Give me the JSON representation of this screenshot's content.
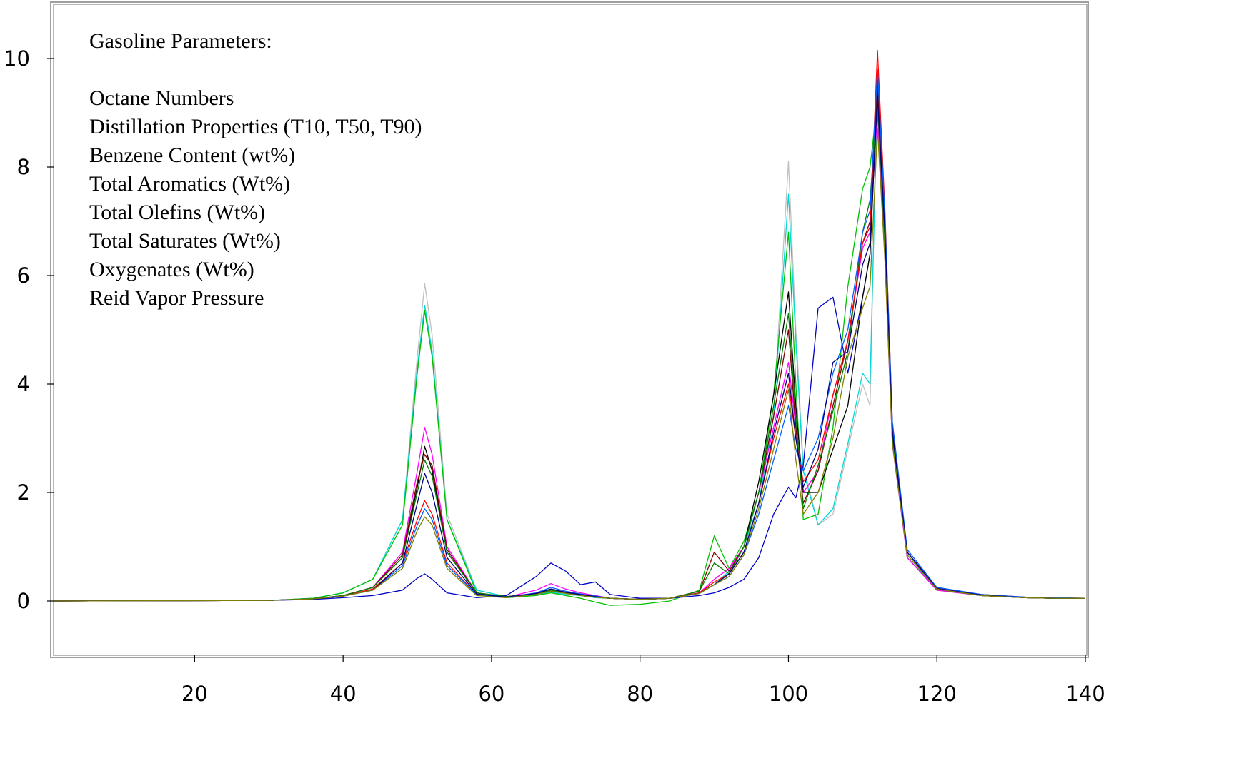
{
  "chart_data": {
    "type": "line",
    "title": "",
    "xlabel": "",
    "ylabel": "",
    "xlim": [
      1,
      140
    ],
    "ylim": [
      -1,
      11
    ],
    "x_ticks": [
      20,
      40,
      60,
      80,
      100,
      120,
      140
    ],
    "y_ticks": [
      0,
      2,
      4,
      6,
      8,
      10
    ],
    "grid": false,
    "legend": "none",
    "annotation": {
      "heading": "Gasoline Parameters:",
      "items": [
        "Octane Numbers",
        "Distillation Properties (T10, T50, T90)",
        "Benzene Content (wt%)",
        "Total Aromatics (Wt%)",
        "Total Olefins (Wt%)",
        "Total Saturates (Wt%)",
        "Oxygenates (Wt%)",
        "Reid Vapor Pressure"
      ]
    },
    "series": [
      {
        "color": "#c0c0c0",
        "x": [
          1,
          30,
          36,
          40,
          44,
          48,
          50,
          51,
          52,
          54,
          58,
          62,
          66,
          68,
          70,
          72,
          74,
          76,
          80,
          84,
          88,
          90,
          92,
          94,
          96,
          98,
          100,
          101,
          102,
          104,
          106,
          108,
          110,
          111,
          112,
          113,
          114,
          116,
          120,
          126,
          132,
          136,
          140
        ],
        "y": [
          0,
          0.01,
          0.05,
          0.15,
          0.4,
          1.5,
          4.5,
          5.85,
          4.9,
          1.6,
          0.2,
          0.08,
          0.12,
          0.18,
          0.12,
          0.1,
          0.06,
          0.05,
          0.03,
          0.05,
          0.15,
          0.3,
          0.55,
          1.0,
          1.8,
          3.5,
          8.1,
          5.0,
          2.5,
          1.4,
          1.6,
          2.8,
          4.0,
          3.6,
          9.9,
          7.0,
          3.2,
          0.8,
          0.22,
          0.1,
          0.06,
          0.05,
          0.05
        ]
      },
      {
        "color": "#00d8d8",
        "x": [
          1,
          30,
          36,
          40,
          44,
          48,
          50,
          51,
          52,
          54,
          58,
          62,
          66,
          68,
          70,
          72,
          74,
          76,
          80,
          84,
          88,
          90,
          92,
          94,
          96,
          98,
          100,
          101,
          102,
          104,
          106,
          108,
          110,
          111,
          112,
          113,
          114,
          116,
          120,
          126,
          132,
          136,
          140
        ],
        "y": [
          0,
          0.01,
          0.05,
          0.15,
          0.4,
          1.5,
          4.3,
          5.45,
          4.6,
          1.5,
          0.2,
          0.08,
          0.12,
          0.16,
          0.12,
          0.1,
          0.06,
          0.05,
          0.03,
          0.05,
          0.15,
          0.3,
          0.55,
          1.0,
          1.8,
          3.4,
          7.5,
          4.8,
          2.4,
          1.4,
          1.7,
          2.9,
          4.2,
          4.0,
          9.5,
          7.0,
          3.1,
          0.8,
          0.22,
          0.1,
          0.06,
          0.05,
          0.05
        ]
      },
      {
        "color": "#00c000",
        "x": [
          1,
          30,
          36,
          40,
          44,
          48,
          50,
          51,
          52,
          54,
          58,
          62,
          66,
          68,
          70,
          72,
          74,
          76,
          80,
          84,
          88,
          90,
          92,
          94,
          96,
          98,
          100,
          101,
          102,
          104,
          106,
          108,
          110,
          111,
          112,
          113,
          114,
          116,
          120,
          126,
          132,
          136,
          140
        ],
        "y": [
          0,
          0.01,
          0.05,
          0.15,
          0.4,
          1.4,
          4.2,
          5.35,
          4.5,
          1.5,
          0.15,
          0.06,
          0.1,
          0.15,
          0.1,
          0.05,
          -0.02,
          -0.08,
          -0.06,
          0,
          0.2,
          1.2,
          0.6,
          1.1,
          2.0,
          3.8,
          6.8,
          4.0,
          1.5,
          1.6,
          3.2,
          5.8,
          7.6,
          8.0,
          9.2,
          6.5,
          3.0,
          0.8,
          0.2,
          0.1,
          0.06,
          0.05,
          0.05
        ]
      },
      {
        "color": "#ff00ff",
        "x": [
          1,
          30,
          36,
          40,
          44,
          48,
          50,
          51,
          52,
          54,
          58,
          62,
          66,
          68,
          70,
          72,
          74,
          76,
          80,
          84,
          88,
          90,
          92,
          94,
          96,
          98,
          100,
          101,
          102,
          104,
          106,
          108,
          110,
          111,
          112,
          113,
          114,
          116,
          120,
          126,
          132,
          136,
          140
        ],
        "y": [
          0,
          0.01,
          0.04,
          0.1,
          0.25,
          0.9,
          2.4,
          3.2,
          2.7,
          1.0,
          0.15,
          0.07,
          0.2,
          0.32,
          0.22,
          0.15,
          0.1,
          0.05,
          0.03,
          0.05,
          0.15,
          0.4,
          0.6,
          1.0,
          2.0,
          3.2,
          4.4,
          3.2,
          2.0,
          2.4,
          3.8,
          4.8,
          6.5,
          6.8,
          9.0,
          6.3,
          2.9,
          0.8,
          0.2,
          0.1,
          0.06,
          0.05,
          0.05
        ]
      },
      {
        "color": "#0000c8",
        "x": [
          1,
          30,
          36,
          40,
          44,
          48,
          50,
          51,
          52,
          54,
          58,
          62,
          66,
          68,
          70,
          72,
          74,
          76,
          80,
          84,
          88,
          90,
          92,
          94,
          96,
          98,
          100,
          101,
          102,
          104,
          106,
          108,
          110,
          111,
          112,
          113,
          114,
          116,
          120,
          126,
          132,
          136,
          140
        ],
        "y": [
          0,
          0.01,
          0.03,
          0.06,
          0.1,
          0.2,
          0.42,
          0.5,
          0.4,
          0.15,
          0.06,
          0.1,
          0.45,
          0.7,
          0.55,
          0.3,
          0.35,
          0.12,
          0.05,
          0.05,
          0.1,
          0.15,
          0.25,
          0.4,
          0.8,
          1.6,
          2.1,
          1.9,
          2.5,
          5.4,
          5.6,
          4.2,
          5.6,
          6.4,
          9.6,
          7.0,
          3.2,
          0.9,
          0.25,
          0.12,
          0.07,
          0.05,
          0.05
        ]
      },
      {
        "color": "#000000",
        "x": [
          1,
          30,
          36,
          40,
          44,
          48,
          50,
          51,
          52,
          54,
          58,
          62,
          66,
          68,
          70,
          72,
          74,
          76,
          80,
          84,
          88,
          90,
          92,
          94,
          96,
          98,
          100,
          101,
          102,
          104,
          106,
          108,
          110,
          111,
          112,
          113,
          114,
          116,
          120,
          126,
          132,
          136,
          140
        ],
        "y": [
          0,
          0.01,
          0.04,
          0.1,
          0.25,
          0.8,
          2.1,
          2.85,
          2.4,
          0.9,
          0.15,
          0.08,
          0.14,
          0.22,
          0.16,
          0.12,
          0.08,
          0.05,
          0.03,
          0.05,
          0.15,
          0.3,
          0.5,
          1.0,
          2.2,
          3.8,
          5.7,
          3.6,
          2.0,
          2.0,
          2.8,
          3.6,
          5.6,
          6.4,
          9.4,
          6.8,
          3.1,
          0.9,
          0.22,
          0.1,
          0.06,
          0.05,
          0.05
        ]
      },
      {
        "color": "#800000",
        "x": [
          1,
          30,
          36,
          40,
          44,
          48,
          50,
          51,
          52,
          54,
          58,
          62,
          66,
          68,
          70,
          72,
          74,
          76,
          80,
          84,
          88,
          90,
          92,
          94,
          96,
          98,
          100,
          101,
          102,
          104,
          106,
          108,
          110,
          111,
          112,
          113,
          114,
          116,
          120,
          126,
          132,
          136,
          140
        ],
        "y": [
          0,
          0.01,
          0.04,
          0.1,
          0.25,
          0.85,
          2.2,
          2.7,
          2.5,
          0.95,
          0.15,
          0.08,
          0.13,
          0.2,
          0.15,
          0.11,
          0.07,
          0.05,
          0.03,
          0.05,
          0.18,
          0.9,
          0.55,
          1.0,
          2.0,
          3.4,
          5.0,
          3.2,
          1.8,
          2.4,
          3.6,
          4.8,
          6.6,
          7.0,
          9.6,
          6.9,
          3.1,
          0.9,
          0.22,
          0.1,
          0.06,
          0.05,
          0.05
        ]
      },
      {
        "color": "#008000",
        "x": [
          1,
          30,
          36,
          40,
          44,
          48,
          50,
          51,
          52,
          54,
          58,
          62,
          66,
          68,
          70,
          72,
          74,
          76,
          80,
          84,
          88,
          90,
          92,
          94,
          96,
          98,
          100,
          101,
          102,
          104,
          106,
          108,
          110,
          111,
          112,
          113,
          114,
          116,
          120,
          126,
          132,
          136,
          140
        ],
        "y": [
          0,
          0.01,
          0.04,
          0.1,
          0.25,
          0.8,
          2.0,
          2.6,
          2.3,
          0.9,
          0.15,
          0.08,
          0.13,
          0.2,
          0.15,
          0.1,
          0.07,
          0.05,
          0.03,
          0.05,
          0.18,
          0.7,
          0.5,
          1.0,
          2.0,
          3.6,
          5.3,
          3.4,
          1.7,
          2.5,
          3.5,
          4.6,
          6.8,
          7.4,
          9.2,
          6.6,
          3.0,
          0.85,
          0.22,
          0.1,
          0.06,
          0.05,
          0.05
        ]
      },
      {
        "color": "#ff0000",
        "x": [
          1,
          30,
          36,
          40,
          44,
          48,
          50,
          51,
          52,
          54,
          58,
          62,
          66,
          68,
          70,
          72,
          74,
          76,
          80,
          84,
          88,
          90,
          92,
          94,
          96,
          98,
          100,
          101,
          102,
          104,
          106,
          108,
          110,
          111,
          112,
          113,
          114,
          116,
          120,
          126,
          132,
          136,
          140
        ],
        "y": [
          0,
          0.01,
          0.04,
          0.09,
          0.22,
          0.7,
          1.5,
          1.85,
          1.6,
          0.7,
          0.12,
          0.07,
          0.14,
          0.22,
          0.16,
          0.12,
          0.08,
          0.05,
          0.03,
          0.05,
          0.15,
          0.35,
          0.5,
          0.9,
          1.8,
          3.0,
          4.0,
          3.0,
          2.2,
          2.6,
          3.8,
          4.8,
          6.6,
          6.9,
          10.15,
          7.2,
          3.3,
          0.9,
          0.24,
          0.12,
          0.07,
          0.06,
          0.05
        ]
      },
      {
        "color": "#0060ff",
        "x": [
          1,
          30,
          36,
          40,
          44,
          48,
          50,
          51,
          52,
          54,
          58,
          62,
          66,
          68,
          70,
          72,
          74,
          76,
          80,
          84,
          88,
          90,
          92,
          94,
          96,
          98,
          100,
          101,
          102,
          104,
          106,
          108,
          110,
          111,
          112,
          113,
          114,
          116,
          120,
          126,
          132,
          136,
          140
        ],
        "y": [
          0,
          0.01,
          0.04,
          0.09,
          0.2,
          0.65,
          1.4,
          1.7,
          1.5,
          0.65,
          0.12,
          0.07,
          0.15,
          0.25,
          0.18,
          0.13,
          0.09,
          0.05,
          0.03,
          0.05,
          0.14,
          0.3,
          0.45,
          0.85,
          1.6,
          2.6,
          3.6,
          2.8,
          2.4,
          3.0,
          4.2,
          5.0,
          6.8,
          7.2,
          9.8,
          7.1,
          3.3,
          0.95,
          0.25,
          0.12,
          0.07,
          0.06,
          0.05
        ]
      },
      {
        "color": "#000080",
        "x": [
          1,
          30,
          36,
          40,
          44,
          48,
          50,
          51,
          52,
          54,
          58,
          62,
          66,
          68,
          70,
          72,
          74,
          76,
          80,
          84,
          88,
          90,
          92,
          94,
          96,
          98,
          100,
          101,
          102,
          104,
          106,
          108,
          110,
          111,
          112,
          113,
          114,
          116,
          120,
          126,
          132,
          136,
          140
        ],
        "y": [
          0,
          0.01,
          0.04,
          0.09,
          0.2,
          0.7,
          1.8,
          2.35,
          2.0,
          0.8,
          0.13,
          0.07,
          0.14,
          0.22,
          0.16,
          0.12,
          0.08,
          0.05,
          0.03,
          0.05,
          0.14,
          0.3,
          0.5,
          0.9,
          1.8,
          3.1,
          4.2,
          3.0,
          2.1,
          2.8,
          4.4,
          4.6,
          6.2,
          6.6,
          9.3,
          6.8,
          3.1,
          0.9,
          0.23,
          0.11,
          0.06,
          0.05,
          0.05
        ]
      },
      {
        "color": "#808000",
        "x": [
          1,
          30,
          36,
          40,
          44,
          48,
          50,
          51,
          52,
          54,
          58,
          62,
          66,
          68,
          70,
          72,
          74,
          76,
          80,
          84,
          88,
          90,
          92,
          94,
          96,
          98,
          100,
          101,
          102,
          104,
          106,
          108,
          110,
          111,
          112,
          113,
          114,
          116,
          120,
          126,
          132,
          136,
          140
        ],
        "y": [
          0,
          0.01,
          0.04,
          0.09,
          0.2,
          0.6,
          1.3,
          1.55,
          1.4,
          0.6,
          0.1,
          0.06,
          0.12,
          0.18,
          0.14,
          0.1,
          0.07,
          0.05,
          0.03,
          0.05,
          0.14,
          0.3,
          0.45,
          0.85,
          1.7,
          2.8,
          3.9,
          2.6,
          1.6,
          2.0,
          3.0,
          4.5,
          5.4,
          5.8,
          8.7,
          6.3,
          2.9,
          0.85,
          0.22,
          0.1,
          0.06,
          0.05,
          0.05
        ]
      }
    ]
  }
}
